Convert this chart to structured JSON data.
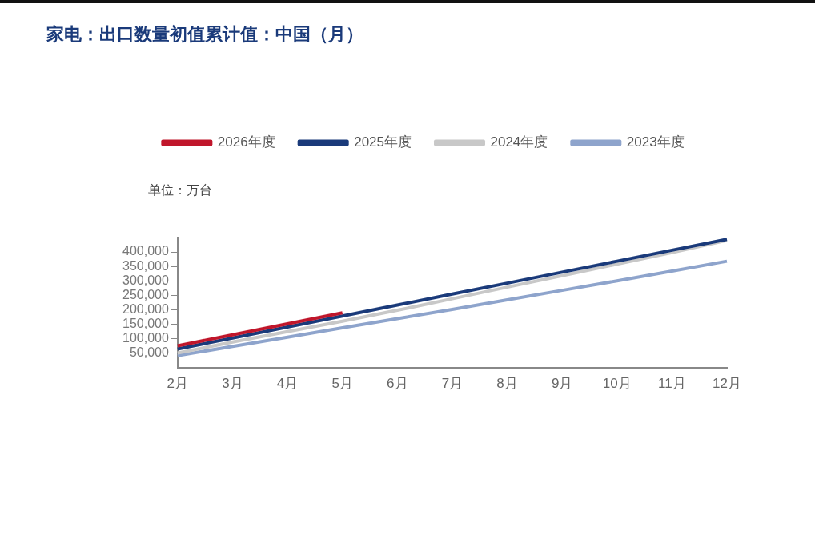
{
  "chart_data": {
    "type": "line",
    "title": "家电：出口数量初值累计值：中国（月）",
    "ylabel": "单位：万台",
    "categories": [
      "2月",
      "3月",
      "4月",
      "5月",
      "6月",
      "7月",
      "8月",
      "9月",
      "10月",
      "11月",
      "12月"
    ],
    "series": [
      {
        "name": "2026年度",
        "color": "#c0162b",
        "values": [
          75000,
          113000,
          151000,
          189000,
          null,
          null,
          null,
          null,
          null,
          null,
          null
        ]
      },
      {
        "name": "2025年度",
        "color": "#1a3a7a",
        "values": [
          64000,
          102000,
          140000,
          178000,
          216000,
          254000,
          292000,
          330000,
          368000,
          406000,
          444000
        ]
      },
      {
        "name": "2024年度",
        "color": "#c8c8c8",
        "values": [
          50000,
          88000,
          124000,
          160000,
          198000,
          238000,
          278000,
          318000,
          358000,
          398000,
          440000
        ]
      },
      {
        "name": "2023年度",
        "color": "#8ea4cc",
        "values": [
          41000,
          73000,
          105000,
          137000,
          169000,
          201000,
          234000,
          267000,
          300000,
          334000,
          368000
        ]
      }
    ],
    "ylim": [
      0,
      450000
    ],
    "yticks": [
      {
        "value": 50000,
        "label": "50,000"
      },
      {
        "value": 100000,
        "label": "100,000"
      },
      {
        "value": 150000,
        "label": "150,000"
      },
      {
        "value": 200000,
        "label": "200,000"
      },
      {
        "value": 250000,
        "label": "250,000"
      },
      {
        "value": 300000,
        "label": "300,000"
      },
      {
        "value": 350000,
        "label": "350,000"
      },
      {
        "value": 400000,
        "label": "400,000"
      }
    ],
    "grid": false,
    "legend": "top",
    "marker": "none",
    "line_style": "solid"
  }
}
